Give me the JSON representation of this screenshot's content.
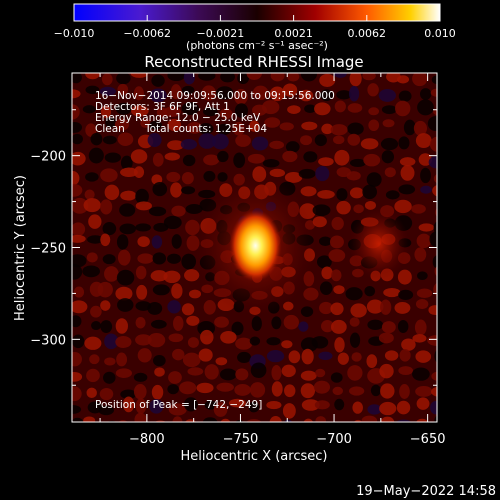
{
  "colorbar": {
    "ticks": [
      "-0.010",
      "-0.0062",
      "-0.0021",
      "0.0021",
      "0.0062",
      "0.010"
    ],
    "unit_label": "(photons cm⁻² s⁻¹ asec⁻²)",
    "range": [
      -0.01,
      0.01
    ],
    "colormap": "blue-purple-red-yellow-white"
  },
  "chart_data": {
    "type": "heatmap",
    "title": "Reconstructed RHESSI Image",
    "xlabel": "Heliocentric X (arcsec)",
    "ylabel": "Heliocentric Y (arcsec)",
    "xlim": [
      -840,
      -645
    ],
    "ylim": [
      -345,
      -155
    ],
    "x_ticks": [
      -800,
      -750,
      -700,
      -650
    ],
    "y_ticks": [
      -200,
      -250,
      -300
    ],
    "x_tick_labels": [
      "−800",
      "−750",
      "−700",
      "−650"
    ],
    "y_tick_labels": [
      "−200",
      "−250",
      "−300"
    ],
    "peak": {
      "x": -742,
      "y": -249
    },
    "annotations": {
      "time": "16−Nov−2014 09:09:56.000 to 09:15:56.000",
      "detectors": "Detectors: 3F 6F 9F, Att 1",
      "energy": "Energy Range: 12.0 − 25.0 keV",
      "algorithm": "Clean",
      "counts": "Total counts: 1.25E+04",
      "peak_text": "Position of Peak = [−742,−249]"
    }
  },
  "footer": {
    "timestamp": "19−May−2022 14:58"
  }
}
